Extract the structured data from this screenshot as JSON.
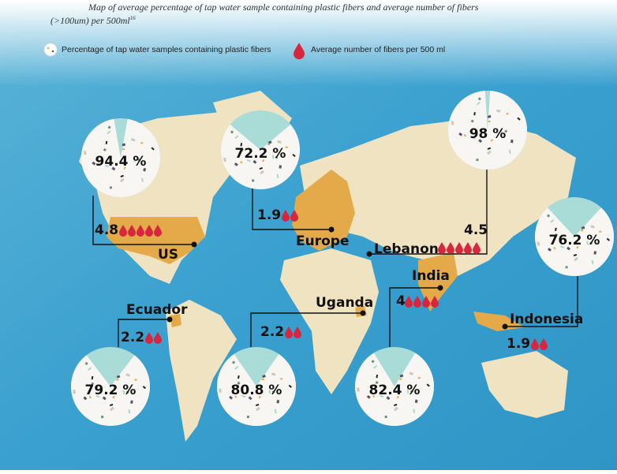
{
  "header": {
    "title": "Map of average percentage of tap water sample containing plastic fibers and average number of fibers (>100um) per 500ml",
    "title_note": "16"
  },
  "legend": {
    "percent": "Percentage of tap water samples containing plastic fibers",
    "fibers": "Average number of fibers per 500 ml"
  },
  "regions": [
    {
      "name": "US",
      "percent": 94.4,
      "percent_label": "94.4 %",
      "fibers": 4.8
    },
    {
      "name": "Europe",
      "percent": 72.2,
      "percent_label": "72.2 %",
      "fibers": 1.9
    },
    {
      "name": "Lebanon",
      "percent": 98,
      "percent_label": "98 %",
      "fibers": 4.5
    },
    {
      "name": "India",
      "percent": 82.4,
      "percent_label": "82.4 %",
      "fibers": 4
    },
    {
      "name": "Indonesia",
      "percent": 76.2,
      "percent_label": "76.2 %",
      "fibers": 1.9
    },
    {
      "name": "Ecuador",
      "percent": 79.2,
      "percent_label": "79.2 %",
      "fibers": 2.2
    },
    {
      "name": "Uganda",
      "percent": 80.8,
      "percent_label": "80.8 %",
      "fibers": 2.2
    }
  ]
}
